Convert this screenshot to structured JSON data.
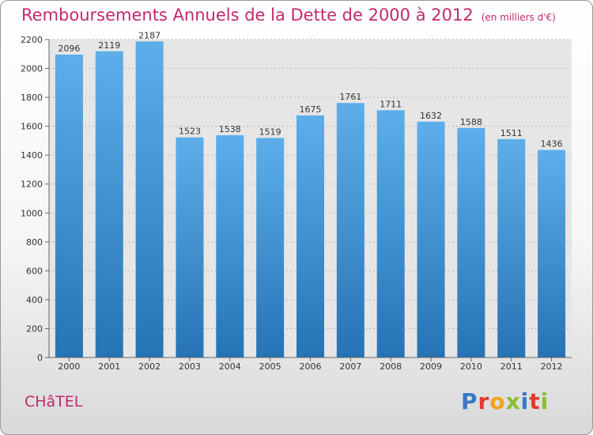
{
  "header": {
    "title": "Remboursements Annuels de la Dette de 2000 à 2012",
    "unit": "(en milliers d'€)"
  },
  "commune": "CHâTEL",
  "logo": {
    "text": "Proxiti",
    "letter_colors": [
      "#3a77c6",
      "#e23a2e",
      "#f3a21b",
      "#8bbf2d",
      "#3a77c6",
      "#e23a2e",
      "#8bbf2d"
    ]
  },
  "colors": {
    "accent": "#c2296e",
    "bar_top": "#5daeea",
    "bar_bottom": "#2673b5"
  },
  "chart_data": {
    "type": "bar",
    "title": "Remboursements Annuels de la Dette de 2000 à 2012",
    "xlabel": "",
    "ylabel": "",
    "categories": [
      "2000",
      "2001",
      "2002",
      "2003",
      "2004",
      "2005",
      "2006",
      "2007",
      "2008",
      "2009",
      "2010",
      "2011",
      "2012"
    ],
    "values": [
      2096,
      2119,
      2187,
      1523,
      1538,
      1519,
      1675,
      1761,
      1711,
      1632,
      1588,
      1511,
      1436
    ],
    "ylim": [
      0,
      2200
    ],
    "yticks": [
      0,
      200,
      400,
      600,
      800,
      1000,
      1200,
      1400,
      1600,
      1800,
      2000,
      2200
    ],
    "grid": true,
    "data_labels": true
  }
}
